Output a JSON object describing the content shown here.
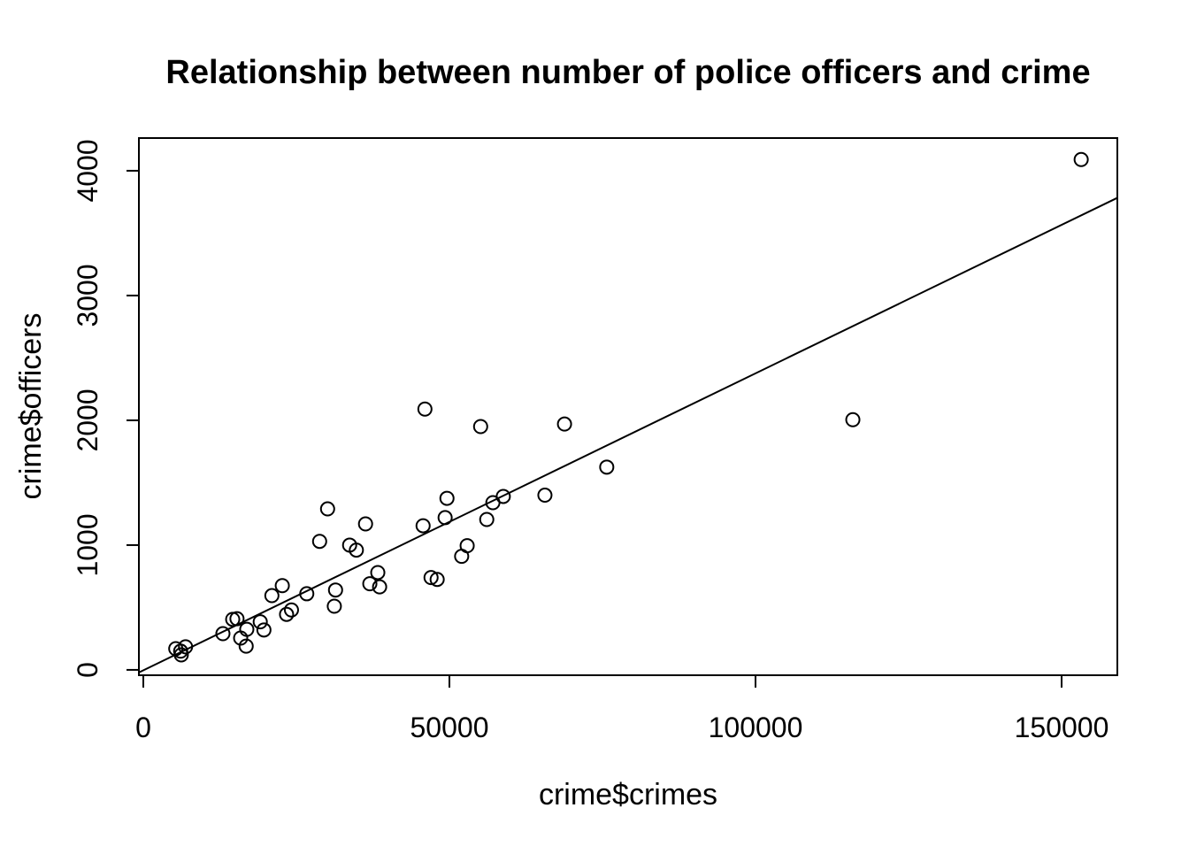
{
  "page": {
    "background": "#ffffff",
    "foreground": "#000000"
  },
  "chart_data": {
    "type": "scatter",
    "title": "Relationship between number of police officers and crime",
    "xlabel": "crime$crimes",
    "ylabel": "crime$officers",
    "x_ticks": [
      0,
      50000,
      100000,
      150000
    ],
    "y_ticks": [
      0,
      1000,
      2000,
      3000,
      4000
    ],
    "xlim": [
      -723,
      159106
    ],
    "ylim": [
      -43,
      4262
    ],
    "grid": false,
    "legend": null,
    "marker": "open-circle",
    "marker_color": "#000000",
    "line_color": "#000000",
    "points": [
      [
        5300,
        170
      ],
      [
        6100,
        150
      ],
      [
        6900,
        185
      ],
      [
        6200,
        120
      ],
      [
        13000,
        290
      ],
      [
        14600,
        405
      ],
      [
        15300,
        410
      ],
      [
        16900,
        325
      ],
      [
        15900,
        255
      ],
      [
        16800,
        190
      ],
      [
        19100,
        385
      ],
      [
        19700,
        320
      ],
      [
        21000,
        595
      ],
      [
        22700,
        675
      ],
      [
        23400,
        445
      ],
      [
        24200,
        480
      ],
      [
        26700,
        610
      ],
      [
        28800,
        1030
      ],
      [
        30100,
        1290
      ],
      [
        31200,
        510
      ],
      [
        31400,
        640
      ],
      [
        33700,
        1000
      ],
      [
        34800,
        960
      ],
      [
        36300,
        1170
      ],
      [
        37000,
        690
      ],
      [
        38300,
        780
      ],
      [
        38600,
        665
      ],
      [
        45700,
        1155
      ],
      [
        46000,
        2090
      ],
      [
        47000,
        740
      ],
      [
        48000,
        725
      ],
      [
        49300,
        1220
      ],
      [
        49600,
        1375
      ],
      [
        52000,
        910
      ],
      [
        52900,
        995
      ],
      [
        55100,
        1950
      ],
      [
        56100,
        1205
      ],
      [
        57100,
        1340
      ],
      [
        58800,
        1390
      ],
      [
        65600,
        1400
      ],
      [
        68800,
        1970
      ],
      [
        75700,
        1625
      ],
      [
        115900,
        2005
      ],
      [
        153200,
        4090
      ]
    ],
    "regression_line": {
      "x1": -723,
      "y1": -21,
      "x2": 159106,
      "y2": 3783
    }
  }
}
